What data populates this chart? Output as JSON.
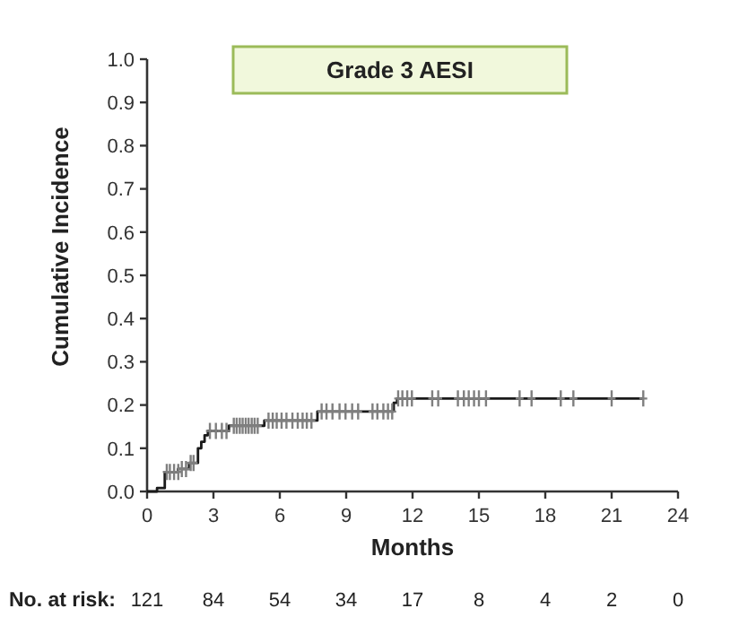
{
  "chart_data": {
    "type": "step",
    "title": "Grade 3 AESI",
    "xlabel": "Months",
    "ylabel": "Cumulative Incidence",
    "xlim": [
      0,
      24
    ],
    "xticks": [
      0,
      3,
      6,
      9,
      12,
      15,
      18,
      21,
      24
    ],
    "ylim": [
      0,
      1
    ],
    "yticks": [
      {
        "value": 0,
        "label": "0.0"
      },
      0.1,
      0.2,
      0.3,
      0.4,
      0.5,
      0.6,
      0.7,
      0.8,
      0.9,
      {
        "value": 1,
        "label": "1.0"
      }
    ],
    "series": [
      {
        "color": "#1a1a1a",
        "x": [
          0,
          0.45,
          0.8,
          1.4,
          1.9,
          2.3,
          2.45,
          2.6,
          2.75,
          3.7,
          5.3,
          7.7,
          11.15,
          11.3,
          22.43
        ],
        "values": [
          0,
          0.008,
          0.045,
          0.052,
          0.066,
          0.1,
          0.115,
          0.13,
          0.14,
          0.152,
          0.164,
          0.185,
          0.205,
          0.215,
          0.215
        ]
      },
      {
        "type": "scatter",
        "color": "#7f7f7f",
        "marker": "cross",
        "x": [
          0.89,
          1.03,
          1.22,
          1.41,
          1.57,
          1.76,
          1.97,
          2.1,
          2.84,
          3.11,
          3.38,
          3.59,
          3.92,
          4.05,
          4.19,
          4.32,
          4.46,
          4.59,
          4.73,
          4.86,
          5.0,
          5.49,
          5.68,
          5.86,
          6.08,
          6.3,
          6.57,
          6.81,
          7.03,
          7.22,
          7.43,
          7.89,
          8.11,
          8.38,
          8.7,
          8.97,
          9.27,
          9.54,
          10.19,
          10.41,
          10.68,
          10.89,
          11.08,
          11.35,
          11.54,
          11.76,
          11.97,
          12.89,
          13.16,
          14.05,
          14.32,
          14.54,
          14.78,
          15.0,
          15.32,
          16.84,
          17.38,
          18.7,
          19.27,
          21.0,
          22.43
        ],
        "values": [
          0.045,
          0.045,
          0.045,
          0.045,
          0.052,
          0.052,
          0.066,
          0.066,
          0.14,
          0.14,
          0.14,
          0.14,
          0.152,
          0.152,
          0.152,
          0.152,
          0.152,
          0.152,
          0.152,
          0.152,
          0.152,
          0.164,
          0.164,
          0.164,
          0.164,
          0.164,
          0.164,
          0.164,
          0.164,
          0.164,
          0.164,
          0.185,
          0.185,
          0.185,
          0.185,
          0.185,
          0.185,
          0.185,
          0.185,
          0.185,
          0.185,
          0.185,
          0.185,
          0.215,
          0.215,
          0.215,
          0.215,
          0.215,
          0.215,
          0.215,
          0.215,
          0.215,
          0.215,
          0.215,
          0.215,
          0.215,
          0.215,
          0.215,
          0.215,
          0.215,
          0.215
        ]
      }
    ],
    "annotations": [
      "No. at risk:",
      "121",
      "84",
      "54",
      "34",
      "17",
      "8",
      "4",
      "2",
      "0"
    ]
  }
}
